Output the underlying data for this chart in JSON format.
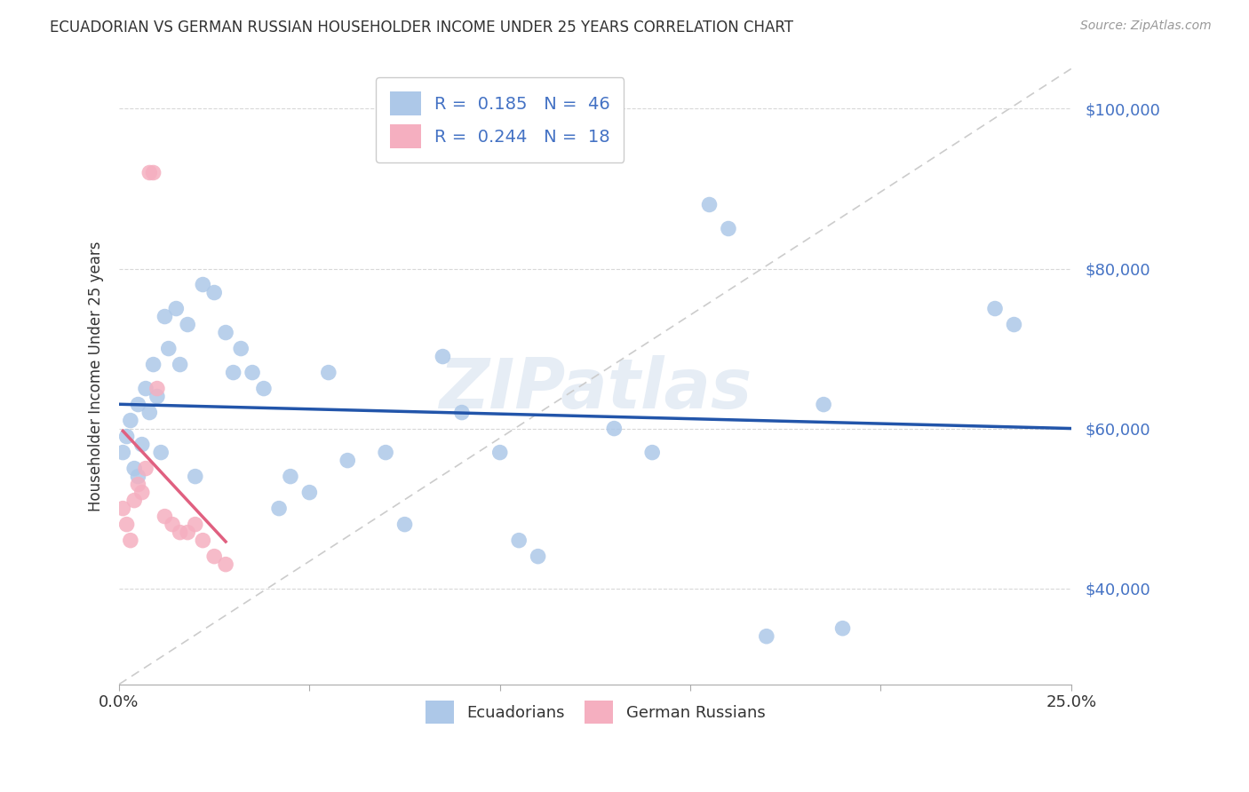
{
  "title": "ECUADORIAN VS GERMAN RUSSIAN HOUSEHOLDER INCOME UNDER 25 YEARS CORRELATION CHART",
  "source": "Source: ZipAtlas.com",
  "ylabel": "Householder Income Under 25 years",
  "xmin": 0.0,
  "xmax": 0.25,
  "ymin": 28000,
  "ymax": 105000,
  "yticks": [
    40000,
    60000,
    80000,
    100000
  ],
  "ytick_labels": [
    "$40,000",
    "$60,000",
    "$80,000",
    "$100,000"
  ],
  "watermark": "ZIPatlas",
  "blue_color": "#adc8e8",
  "pink_color": "#f5afc0",
  "blue_line_color": "#2255aa",
  "pink_line_color": "#e06080",
  "blue_text_color": "#4472c4",
  "diagonal_color": "#cccccc",
  "ecuadorian_x": [
    0.001,
    0.002,
    0.003,
    0.004,
    0.005,
    0.005,
    0.006,
    0.007,
    0.008,
    0.009,
    0.01,
    0.011,
    0.012,
    0.013,
    0.015,
    0.016,
    0.018,
    0.02,
    0.022,
    0.025,
    0.028,
    0.03,
    0.032,
    0.035,
    0.038,
    0.042,
    0.045,
    0.05,
    0.055,
    0.06,
    0.07,
    0.075,
    0.085,
    0.09,
    0.1,
    0.105,
    0.11,
    0.13,
    0.14,
    0.155,
    0.16,
    0.17,
    0.185,
    0.19,
    0.23,
    0.235
  ],
  "ecuadorian_y": [
    57000,
    59000,
    61000,
    55000,
    54000,
    63000,
    58000,
    65000,
    62000,
    68000,
    64000,
    57000,
    74000,
    70000,
    75000,
    68000,
    73000,
    54000,
    78000,
    77000,
    72000,
    67000,
    70000,
    67000,
    65000,
    50000,
    54000,
    52000,
    67000,
    56000,
    57000,
    48000,
    69000,
    62000,
    57000,
    46000,
    44000,
    60000,
    57000,
    88000,
    85000,
    34000,
    63000,
    35000,
    75000,
    73000
  ],
  "german_russian_x": [
    0.001,
    0.002,
    0.003,
    0.004,
    0.005,
    0.006,
    0.007,
    0.008,
    0.009,
    0.01,
    0.012,
    0.014,
    0.016,
    0.018,
    0.02,
    0.022,
    0.025,
    0.028
  ],
  "german_russian_y": [
    50000,
    48000,
    46000,
    51000,
    53000,
    52000,
    55000,
    92000,
    92000,
    65000,
    49000,
    48000,
    47000,
    47000,
    48000,
    46000,
    44000,
    43000
  ],
  "xtick_positions": [
    0.0,
    0.05,
    0.1,
    0.15,
    0.2,
    0.25
  ]
}
